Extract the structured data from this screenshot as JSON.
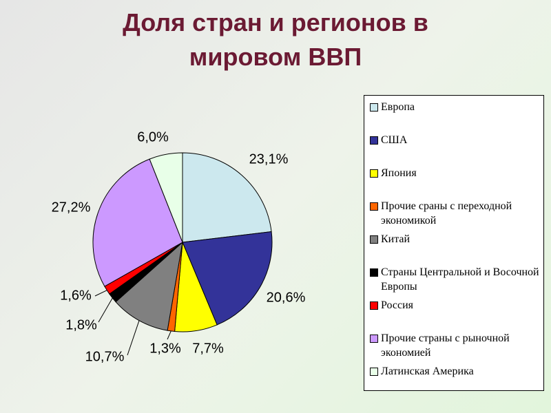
{
  "chart_data": {
    "type": "pie",
    "title": "Доля стран и регионов в мировом ВВП",
    "categories": [
      "Европа",
      "США",
      "Япония",
      "Прочие сраны с переходной экономикой",
      "Китай",
      "Страны Центральной и Восочной Европы",
      "Россия",
      "Прочие страны с рыночной экономией",
      "Латинская Америка"
    ],
    "values": [
      23.1,
      20.6,
      7.7,
      1.3,
      10.7,
      1.8,
      1.6,
      27.2,
      6.0
    ],
    "value_labels": [
      "23,1%",
      "20,6%",
      "7,7%",
      "1,3%",
      "10,7%",
      "1,8%",
      "1,6%",
      "27,2%",
      "6,0%"
    ],
    "colors": [
      "#cce8ee",
      "#333399",
      "#ffff00",
      "#ff6600",
      "#808080",
      "#000000",
      "#ff0000",
      "#cc99ff",
      "#e8ffe8"
    ]
  }
}
